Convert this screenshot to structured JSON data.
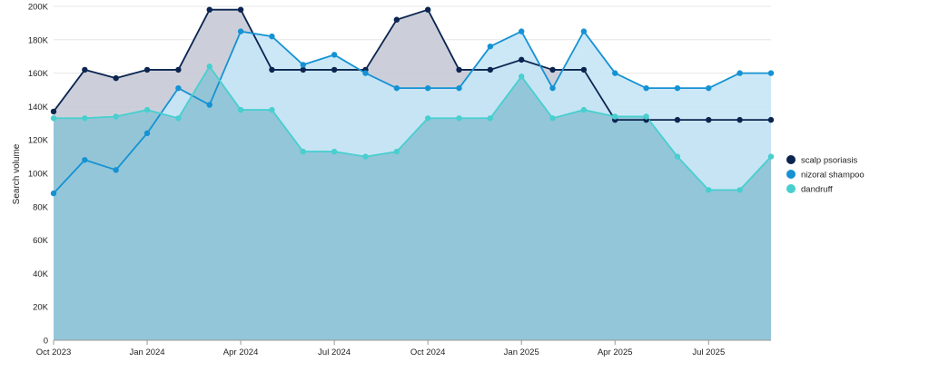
{
  "chart_data": {
    "type": "area",
    "xlabel": "",
    "ylabel": "Search volume",
    "ylim": [
      0,
      200000
    ],
    "y_ticks": [
      0,
      20000,
      40000,
      60000,
      80000,
      100000,
      120000,
      140000,
      160000,
      180000,
      200000
    ],
    "y_tick_labels": [
      "0",
      "20K",
      "40K",
      "60K",
      "80K",
      "100K",
      "120K",
      "140K",
      "160K",
      "180K",
      "200K"
    ],
    "x": [
      "2023-10",
      "2023-11",
      "2023-12",
      "2024-01",
      "2024-02",
      "2024-03",
      "2024-04",
      "2024-05",
      "2024-06",
      "2024-07",
      "2024-08",
      "2024-09",
      "2024-10",
      "2024-11",
      "2024-12",
      "2025-01",
      "2025-02",
      "2025-03",
      "2025-04",
      "2025-05",
      "2025-06",
      "2025-07",
      "2025-08",
      "2025-09"
    ],
    "x_ticks": [
      {
        "x": "2023-10",
        "label": "Oct 2023"
      },
      {
        "x": "2024-01",
        "label": "Jan 2024"
      },
      {
        "x": "2024-04",
        "label": "Apr 2024"
      },
      {
        "x": "2024-07",
        "label": "Jul 2024"
      },
      {
        "x": "2024-10",
        "label": "Oct 2024"
      },
      {
        "x": "2025-01",
        "label": "Jan 2025"
      },
      {
        "x": "2025-04",
        "label": "Apr 2025"
      },
      {
        "x": "2025-07",
        "label": "Jul 2025"
      }
    ],
    "grid": true,
    "legend_position": "right",
    "series": [
      {
        "name": "scalp psoriasis",
        "color": "#0b2550",
        "fill": "#c6cad6",
        "values": [
          137000,
          162000,
          157000,
          162000,
          162000,
          198000,
          198000,
          162000,
          162000,
          162000,
          162000,
          192000,
          198000,
          162000,
          162000,
          168000,
          162000,
          162000,
          132000,
          132000,
          132000,
          132000,
          132000,
          132000
        ]
      },
      {
        "name": "nizoral shampoo",
        "color": "#1592d3",
        "fill": "#c6e6f6",
        "values": [
          88000,
          108000,
          102000,
          124000,
          151000,
          141000,
          185000,
          182000,
          165000,
          171000,
          160000,
          151000,
          151000,
          151000,
          176000,
          185000,
          151000,
          185000,
          160000,
          151000,
          151000,
          151000,
          160000,
          160000
        ]
      },
      {
        "name": "dandruff",
        "color": "#48cfcf",
        "fill": "#90c4d6",
        "values": [
          133000,
          133000,
          134000,
          138000,
          133000,
          164000,
          138000,
          138000,
          113000,
          113000,
          110000,
          113000,
          133000,
          133000,
          133000,
          158000,
          133000,
          138000,
          134000,
          134000,
          110000,
          90000,
          90000,
          110000
        ]
      }
    ]
  }
}
